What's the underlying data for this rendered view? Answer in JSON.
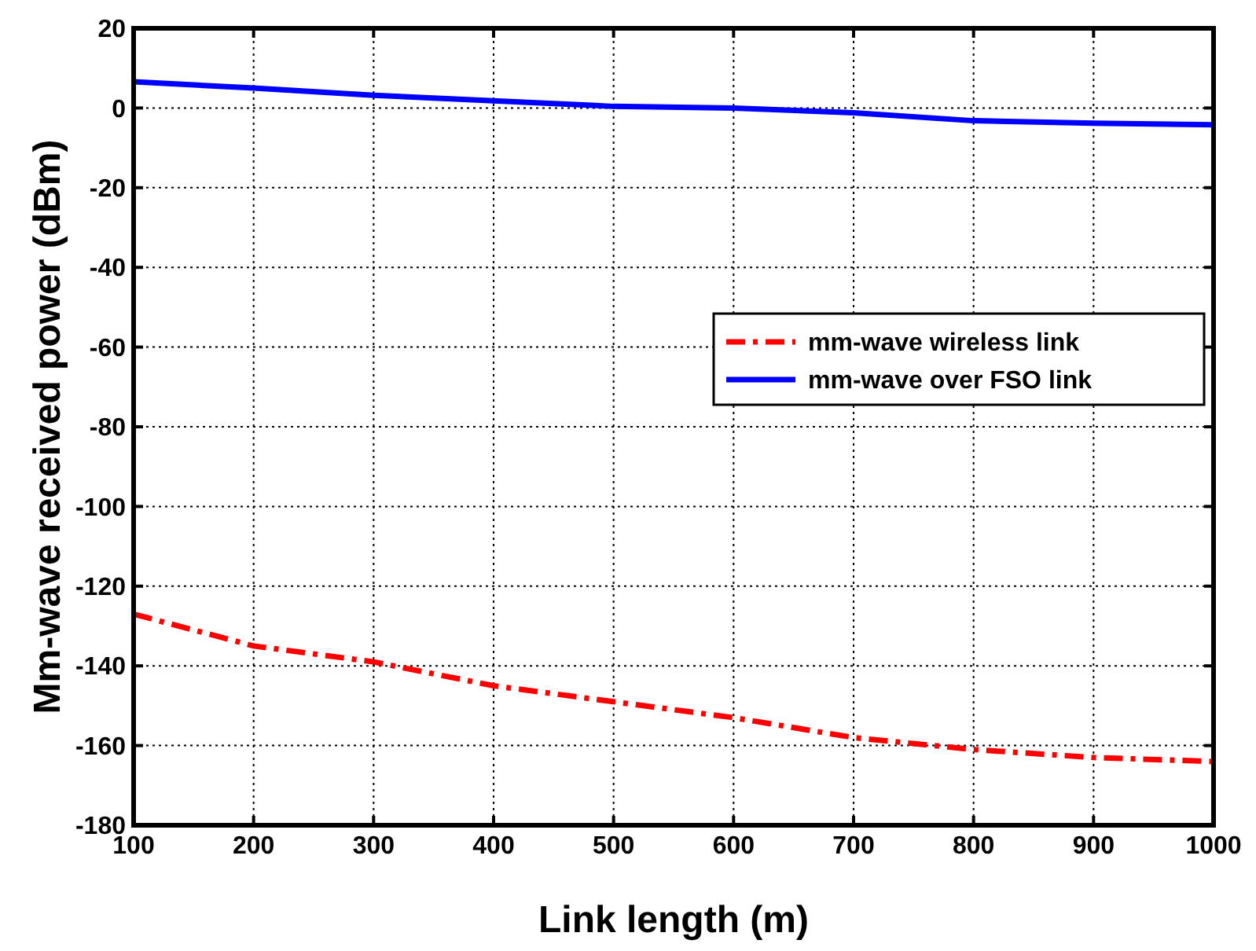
{
  "chart_data": {
    "type": "line",
    "xlabel": "Link length (m)",
    "ylabel": "Mm-wave received power (dBm)",
    "x": [
      100,
      200,
      300,
      400,
      500,
      600,
      700,
      800,
      900,
      1000
    ],
    "series": [
      {
        "name": "mm-wave wireless link",
        "color": "#ff0000",
        "line_style": "dashdot",
        "values": [
          -127,
          -135,
          -139,
          -145,
          -149,
          -153,
          -158,
          -161,
          -163,
          -164
        ]
      },
      {
        "name": "mm-wave over FSO link",
        "color": "#0000ff",
        "line_style": "solid",
        "values": [
          6.6,
          5,
          3.2,
          1.8,
          0.4,
          0,
          -1.2,
          -3.2,
          -3.8,
          -4.2
        ]
      }
    ],
    "xlim": [
      100,
      1000
    ],
    "xticks": [
      100,
      200,
      300,
      400,
      500,
      600,
      700,
      800,
      900,
      1000
    ],
    "ylim": [
      -180,
      20
    ],
    "yticks": [
      -180,
      -160,
      -140,
      -120,
      -100,
      -80,
      -60,
      -40,
      -20,
      0,
      20
    ],
    "grid": true,
    "legend": "right",
    "marker": "none"
  }
}
